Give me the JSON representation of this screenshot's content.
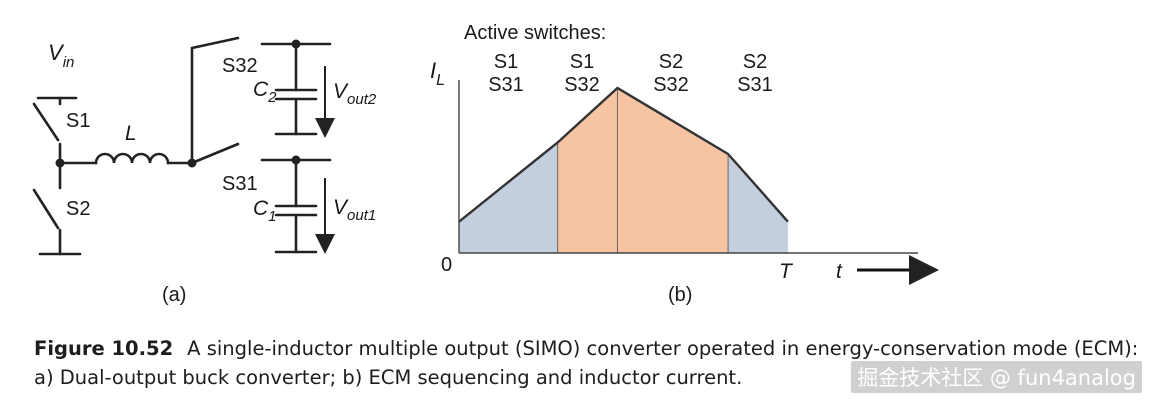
{
  "circuit": {
    "vin": "V",
    "vin_sub": "in",
    "s1": "S1",
    "s2": "S2",
    "inductor": "L",
    "s32": "S32",
    "s31": "S31",
    "c2": "C",
    "c2_sub": "2",
    "c1": "C",
    "c1_sub": "1",
    "vout2": "V",
    "vout2_sub": "out2",
    "vout1": "V",
    "vout1_sub": "out1",
    "panel_label": "(a)"
  },
  "waveform": {
    "header": "Active switches:",
    "phases": [
      {
        "top": "S1",
        "bottom": "S31"
      },
      {
        "top": "S1",
        "bottom": "S32"
      },
      {
        "top": "S2",
        "bottom": "S32"
      },
      {
        "top": "S2",
        "bottom": "S31"
      }
    ],
    "ylabel": "I",
    "ylabel_sub": "L",
    "origin": "0",
    "period": "T",
    "xlabel": "t",
    "panel_label": "(b)",
    "colors": {
      "s31_fill": "#c3cfdf",
      "s32_fill": "#f6c4a3",
      "stroke": "#333333"
    }
  },
  "chart_data": {
    "type": "area",
    "x": [
      0,
      0.33,
      0.53,
      0.9,
      1.1
    ],
    "y": [
      0.19,
      0.67,
      1.0,
      0.6,
      0.19
    ],
    "segment_labels": [
      "S1 S31",
      "S1 S32",
      "S2 S32",
      "S2 S31"
    ],
    "xlabel": "t",
    "ylabel": "I_L"
  },
  "caption": {
    "figure_number": "Figure 10.52",
    "text": "A single-inductor multiple output (SIMO) converter operated in energy-conservation mode (ECM): a) Dual-output buck converter; b) ECM sequencing and inductor current."
  },
  "watermark": "掘金技术社区 @ fun4analog"
}
